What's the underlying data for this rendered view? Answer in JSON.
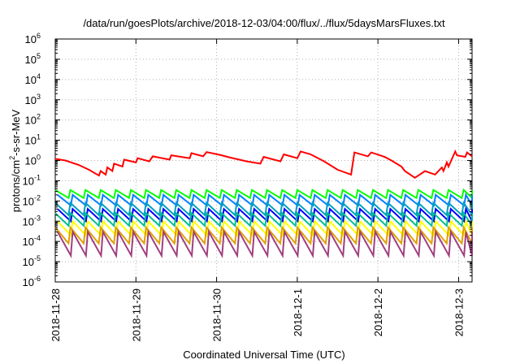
{
  "chart_data": {
    "type": "line",
    "title": "/data/run/goesPlots/archive/2018-12-03/04:00/flux/../flux/5daysMarsFluxes.txt",
    "xlabel": "Coordinated Universal Time (UTC)",
    "ylabel_parts": {
      "base": "protons/cm",
      "sup": "2",
      "rest": "-s-sr-MeV"
    },
    "y_scale": "log",
    "ylim": [
      1e-06,
      1000000.0
    ],
    "xlim": [
      "2018-11-28T00:00",
      "2018-12-03T04:00"
    ],
    "grid": true,
    "y_ticks": [
      {
        "value": 1e-06,
        "base": "10",
        "exp": "-6"
      },
      {
        "value": 1e-05,
        "base": "10",
        "exp": "-5"
      },
      {
        "value": 0.0001,
        "base": "10",
        "exp": "-4"
      },
      {
        "value": 0.001,
        "base": "10",
        "exp": "-3"
      },
      {
        "value": 0.01,
        "base": "10",
        "exp": "-2"
      },
      {
        "value": 0.1,
        "base": "10",
        "exp": "-1"
      },
      {
        "value": 1,
        "base": "10",
        "exp": "0"
      },
      {
        "value": 10.0,
        "base": "10",
        "exp": "1"
      },
      {
        "value": 100.0,
        "base": "10",
        "exp": "2"
      },
      {
        "value": 1000.0,
        "base": "10",
        "exp": "3"
      },
      {
        "value": 10000.0,
        "base": "10",
        "exp": "4"
      },
      {
        "value": 100000.0,
        "base": "10",
        "exp": "5"
      },
      {
        "value": 1000000.0,
        "base": "10",
        "exp": "6"
      }
    ],
    "x_ticks": [
      {
        "value": "2018-11-28T00:00",
        "label": "2018-11-28"
      },
      {
        "value": "2018-11-29T00:00",
        "label": "2018-11-29"
      },
      {
        "value": "2018-11-30T00:00",
        "label": "2018-11-30"
      },
      {
        "value": "2018-12-01T00:00",
        "label": "2018-12-1"
      },
      {
        "value": "2018-12-02T00:00",
        "label": "2018-12-2"
      },
      {
        "value": "2018-12-03T00:00",
        "label": "2018-12-3"
      }
    ],
    "red_series": {
      "color": "#ff0000",
      "x": [
        "2018-11-28T00:00",
        "2018-11-28T03:00",
        "2018-11-28T07:00",
        "2018-11-28T10:00",
        "2018-11-28T13:00",
        "2018-11-28T13:30",
        "2018-11-28T15:00",
        "2018-11-28T15:30",
        "2018-11-28T17:00",
        "2018-11-28T17:30",
        "2018-11-28T20:00",
        "2018-11-28T20:30",
        "2018-11-29T00:00",
        "2018-11-29T00:30",
        "2018-11-29T04:00",
        "2018-11-29T05:00",
        "2018-11-29T10:00",
        "2018-11-29T10:30",
        "2018-11-29T16:00",
        "2018-11-29T16:30",
        "2018-11-29T20:00",
        "2018-11-29T21:00",
        "2018-11-30T01:00",
        "2018-11-30T04:00",
        "2018-11-30T09:00",
        "2018-11-30T13:00",
        "2018-11-30T14:00",
        "2018-11-30T19:00",
        "2018-11-30T20:00",
        "2018-12-01T00:00",
        "2018-12-01T01:00",
        "2018-12-01T04:00",
        "2018-12-01T08:00",
        "2018-12-01T12:00",
        "2018-12-01T16:00",
        "2018-12-01T17:00",
        "2018-12-01T21:00",
        "2018-12-01T22:00",
        "2018-12-02T02:00",
        "2018-12-02T04:00",
        "2018-12-02T07:00",
        "2018-12-02T08:00",
        "2018-12-02T11:00",
        "2018-12-02T14:00",
        "2018-12-02T17:00",
        "2018-12-02T19:00",
        "2018-12-02T19:30",
        "2018-12-02T20:30",
        "2018-12-02T21:00",
        "2018-12-02T23:00",
        "2018-12-02T23:30",
        "2018-12-03T02:00",
        "2018-12-03T02:30",
        "2018-12-03T04:00"
      ],
      "values": [
        1.2,
        1.0,
        0.6,
        0.35,
        0.18,
        0.3,
        0.2,
        0.45,
        0.3,
        0.7,
        0.5,
        1.1,
        0.8,
        1.3,
        0.9,
        1.6,
        1.1,
        1.8,
        1.3,
        2.3,
        1.6,
        2.6,
        1.9,
        1.4,
        0.9,
        0.7,
        1.5,
        0.9,
        2.0,
        1.3,
        2.8,
        2.0,
        0.9,
        0.35,
        0.2,
        2.5,
        1.6,
        2.5,
        1.5,
        1.0,
        0.5,
        0.3,
        0.14,
        0.3,
        0.2,
        0.45,
        0.3,
        0.8,
        0.5,
        2.8,
        1.8,
        1.5,
        2.5,
        1.6
      ]
    },
    "sawtooth_series": [
      {
        "color": "#00ff00",
        "peak": 0.035,
        "min": 0.014
      },
      {
        "color": "#0080ff",
        "peak": 0.02,
        "min": 0.006
      },
      {
        "color": "#00a0c0",
        "peak": 0.008,
        "min": 0.002
      },
      {
        "color": "#0000ff",
        "peak": 0.004,
        "min": 0.001
      },
      {
        "color": "#00c090",
        "peak": 0.0025,
        "min": 0.0006
      },
      {
        "color": "#ffff00",
        "peak": 0.001,
        "min": 0.0002
      },
      {
        "color": "#e0a000",
        "peak": 0.0005,
        "min": 8e-05
      },
      {
        "color": "#a04080",
        "peak": 0.0003,
        "min": 2e-05
      }
    ],
    "sawtooth_period_hours": 4.5
  }
}
